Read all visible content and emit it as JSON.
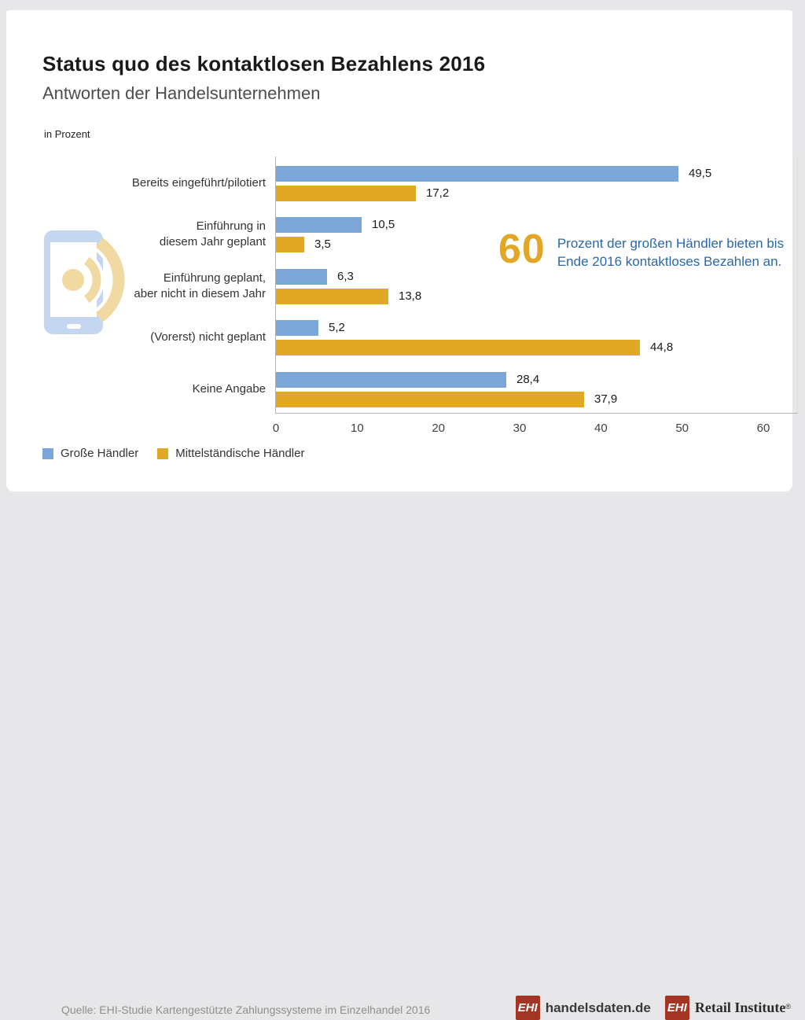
{
  "header": {
    "title": "Status quo des kontaktlosen Bezahlens 2016",
    "subtitle": "Antworten der Handelsunternehmen",
    "unit_label": "in Prozent"
  },
  "chart_data": {
    "type": "bar",
    "orientation": "horizontal",
    "title": "Status quo des kontaktlosen Bezahlens 2016",
    "subtitle": "Antworten der Handelsunternehmen",
    "unit": "in Prozent",
    "categories": [
      [
        "Bereits eingeführt/pilotiert"
      ],
      [
        "Einführung in",
        "diesem Jahr geplant"
      ],
      [
        "Einführung geplant,",
        "aber nicht in diesem Jahr"
      ],
      [
        "(Vorerst) nicht geplant"
      ],
      [
        "Keine Angabe"
      ]
    ],
    "series": [
      {
        "name": "Große Händler",
        "color": "#7ca5d8",
        "values": [
          49.5,
          10.5,
          6.3,
          5.2,
          28.4
        ],
        "labels": [
          "49,5",
          "10,5",
          "6,3",
          "5,2",
          "28,4"
        ]
      },
      {
        "name": "Mittelständische Händler",
        "color": "#e1a826",
        "values": [
          17.2,
          3.5,
          13.8,
          44.8,
          37.9
        ],
        "labels": [
          "17,2",
          "3,5",
          "13,8",
          "44,8",
          "37,9"
        ]
      }
    ],
    "xlim": [
      0,
      60
    ],
    "x_ticks": [
      "0",
      "10",
      "20",
      "30",
      "40",
      "50",
      "60"
    ],
    "grid": false,
    "legend_position": "bottom-left",
    "value_labels": "outside-end"
  },
  "callout": {
    "number": "60",
    "line1": "Prozent der großen Händler bieten bis",
    "line2": "Ende 2016 kontaktloses Bezahlen an.",
    "number_color": "#e2a726",
    "text_color": "#2a67ac"
  },
  "icon": {
    "name": "contactless-phone-icon",
    "phone_color": "#c5d7f0",
    "wave_color": "#f1d9a2"
  },
  "footer": {
    "source": "Quelle: EHI-Studie Kartengestützte Zahlungssysteme im Einzelhandel 2016",
    "logos": [
      {
        "box": "EHI",
        "box_color": "#a43522",
        "text": "handelsdaten.de"
      },
      {
        "box": "EHI",
        "box_color": "#a43522",
        "text": "Retail Institute",
        "reg": "®"
      }
    ]
  }
}
